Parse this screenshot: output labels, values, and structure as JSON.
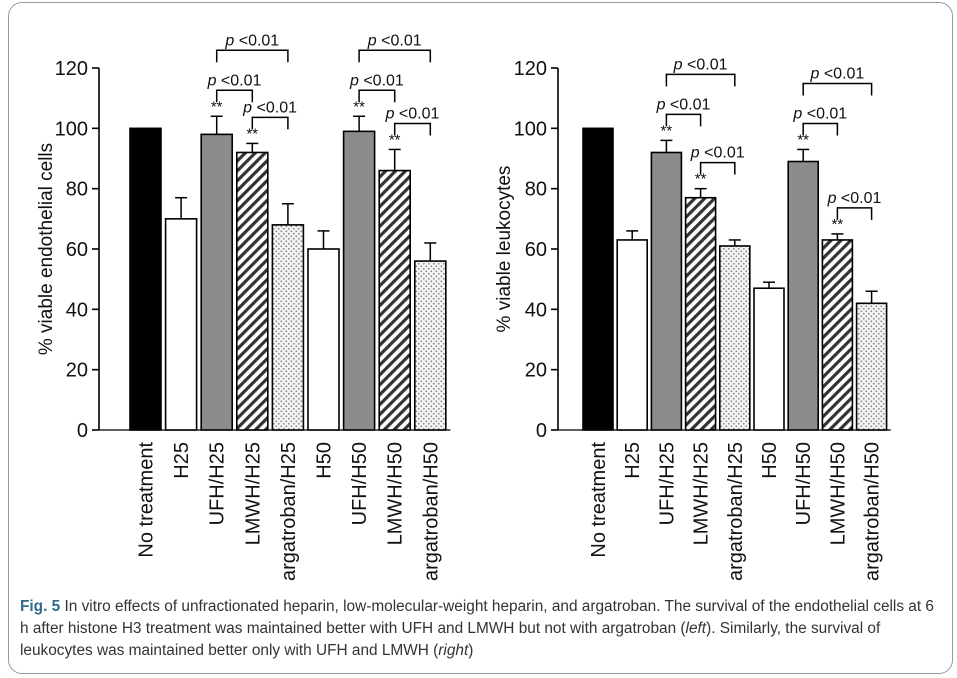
{
  "chart_data": [
    {
      "type": "bar",
      "ylabel": "% viable endothelial cells",
      "ylim": [
        0,
        120
      ],
      "yticks": [
        0,
        20,
        40,
        60,
        80,
        100,
        120
      ],
      "categories": [
        "No treatment",
        "H25",
        "UFH/H25",
        "LMWH/H25",
        "argatroban/H25",
        "H50",
        "UFH/H50",
        "LMWH/H50",
        "argatroban/H50"
      ],
      "values": [
        100,
        70,
        98,
        92,
        68,
        60,
        99,
        86,
        56
      ],
      "errors": [
        0,
        7,
        6,
        3,
        7,
        6,
        5,
        7,
        6
      ],
      "significance": [
        "",
        "",
        "**",
        "**",
        "",
        "",
        "**",
        "**",
        ""
      ],
      "fills": [
        "black",
        "white",
        "gray",
        "hatch",
        "dots",
        "white",
        "gray",
        "hatch",
        "dots"
      ],
      "brackets": [
        {
          "from": 2,
          "to": 4,
          "label": "p <0.01"
        },
        {
          "from": 2,
          "to": 3,
          "label": "p <0.01"
        },
        {
          "from": 3,
          "to": 4,
          "label": "p <0.01"
        },
        {
          "from": 6,
          "to": 8,
          "label": "p <0.01"
        },
        {
          "from": 6,
          "to": 7,
          "label": "p <0.01"
        },
        {
          "from": 7,
          "to": 8,
          "label": "p <0.01"
        }
      ]
    },
    {
      "type": "bar",
      "ylabel": "% viable leukocytes",
      "ylim": [
        0,
        120
      ],
      "yticks": [
        0,
        20,
        40,
        60,
        80,
        100,
        120
      ],
      "categories": [
        "No treatment",
        "H25",
        "UFH/H25",
        "LMWH/H25",
        "argatroban/H25",
        "H50",
        "UFH/H50",
        "LMWH/H50",
        "argatroban/H50"
      ],
      "values": [
        100,
        63,
        92,
        77,
        61,
        47,
        89,
        63,
        42
      ],
      "errors": [
        0,
        3,
        4,
        3,
        2,
        2,
        4,
        2,
        4
      ],
      "significance": [
        "",
        "",
        "**",
        "**",
        "",
        "",
        "**",
        "**",
        ""
      ],
      "fills": [
        "black",
        "white",
        "gray",
        "hatch",
        "dots",
        "white",
        "gray",
        "hatch",
        "dots"
      ],
      "brackets": [
        {
          "from": 2,
          "to": 4,
          "label": "p <0.01"
        },
        {
          "from": 2,
          "to": 3,
          "label": "p <0.01"
        },
        {
          "from": 3,
          "to": 4,
          "label": "p <0.01"
        },
        {
          "from": 6,
          "to": 8,
          "label": "p <0.01"
        },
        {
          "from": 6,
          "to": 7,
          "label": "p <0.01"
        },
        {
          "from": 7,
          "to": 8,
          "label": "p <0.01"
        }
      ]
    }
  ],
  "caption": {
    "label": "Fig. 5",
    "text1": " In vitro effects of unfractionated heparin, low-molecular-weight heparin, and argatroban. The survival of the endothelial cells at 6 h after histone H3 treatment was maintained better with UFH and LMWH but not with argatroban (",
    "left": "left",
    "text2": "). Similarly, the survival of leukocytes was maintained better only with UFH and LMWH (",
    "right": "right",
    "text3": ")"
  }
}
